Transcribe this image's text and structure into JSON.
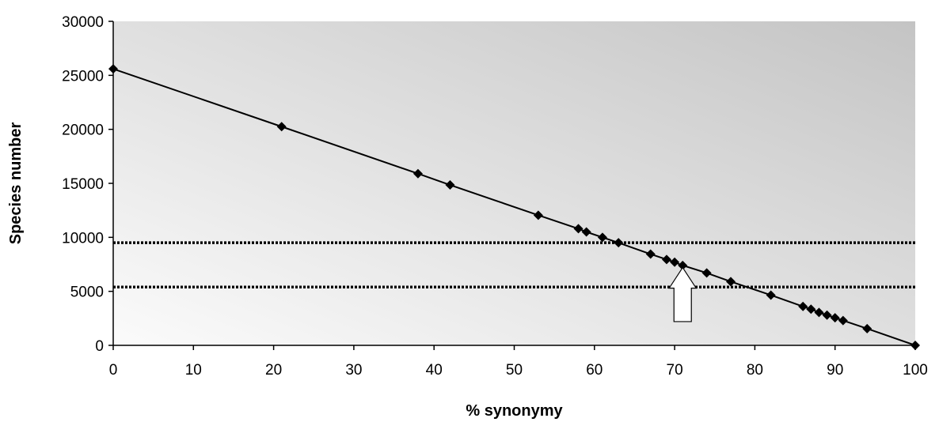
{
  "chart_data": {
    "type": "line",
    "xlabel": "% synonymy",
    "ylabel": "Species number",
    "xlim": [
      0,
      100
    ],
    "ylim": [
      0,
      30000
    ],
    "x_ticks": [
      "0",
      "10",
      "20",
      "30",
      "40",
      "50",
      "60",
      "70",
      "80",
      "90",
      "100"
    ],
    "y_ticks": [
      "0",
      "5000",
      "10000",
      "15000",
      "20000",
      "25000",
      "30000"
    ],
    "grid": false,
    "legend": "none",
    "series": [
      {
        "points": [
          [
            0,
            25600
          ],
          [
            21,
            20250
          ],
          [
            38,
            15900
          ],
          [
            42,
            14850
          ],
          [
            53,
            12050
          ],
          [
            58,
            10800
          ],
          [
            59,
            10500
          ],
          [
            61,
            10000
          ],
          [
            63,
            9500
          ],
          [
            67,
            8450
          ],
          [
            69,
            7950
          ],
          [
            70,
            7700
          ],
          [
            71,
            7400
          ],
          [
            74,
            6700
          ],
          [
            77,
            5900
          ],
          [
            82,
            4650
          ],
          [
            86,
            3600
          ],
          [
            87,
            3350
          ],
          [
            88,
            3050
          ],
          [
            89,
            2800
          ],
          [
            90,
            2550
          ],
          [
            91,
            2300
          ],
          [
            94,
            1550
          ],
          [
            100,
            0
          ]
        ]
      }
    ],
    "reference_lines": [
      {
        "y": 9500,
        "style": "dotted"
      },
      {
        "y": 5400,
        "style": "dotted"
      }
    ],
    "annotation_arrow": {
      "x": 71,
      "tip_y": 7200,
      "base_y": 2200,
      "direction": "up"
    },
    "colors": {
      "line": "#000000",
      "marker": "#000000",
      "plot_bg_light": "#fbfbfb",
      "plot_bg_dark": "#c4c4c4",
      "arrow_fill": "#ffffff"
    }
  }
}
